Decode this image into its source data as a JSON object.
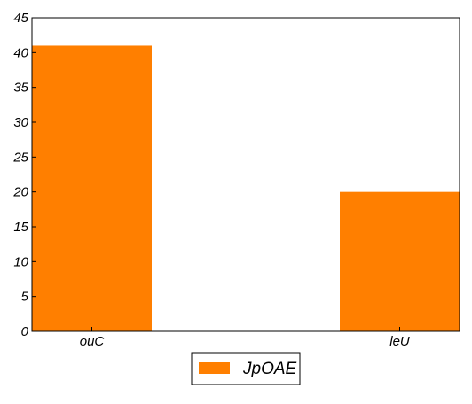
{
  "chart_data": {
    "type": "bar",
    "categories": [
      "ouC",
      "leU"
    ],
    "series": [
      {
        "name": "JpOAE",
        "values": [
          41,
          20
        ],
        "color": "#ff7f00"
      }
    ],
    "ylim": [
      0,
      45
    ],
    "yticks": [
      0,
      5,
      10,
      15,
      20,
      25,
      30,
      35,
      40,
      45
    ],
    "grid": false,
    "legend_position": "bottom-center"
  }
}
